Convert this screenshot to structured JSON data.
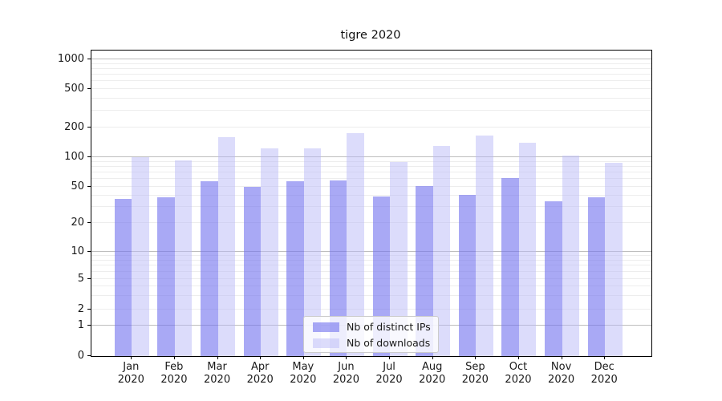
{
  "chart_data": {
    "type": "bar",
    "title": "tigre 2020",
    "months": [
      "Jan",
      "Feb",
      "Mar",
      "Apr",
      "May",
      "Jun",
      "Jul",
      "Aug",
      "Sep",
      "Oct",
      "Nov",
      "Dec"
    ],
    "year": "2020",
    "series": [
      {
        "name": "Nb of distinct IPs",
        "color": "#a9a9f5",
        "fill": "rgba(116,116,239,0.62)",
        "values": [
          37,
          38,
          57,
          50,
          57,
          58,
          39,
          51,
          41,
          62,
          35,
          38
        ]
      },
      {
        "name": "Nb of downloads",
        "color": "#dcdcfb",
        "fill": "rgba(186,186,247,0.50)",
        "values": [
          100,
          93,
          160,
          122,
          122,
          175,
          90,
          130,
          165,
          140,
          104,
          87
        ]
      }
    ],
    "y_axis": {
      "scale": "symlog",
      "ticks": [
        0,
        1,
        2,
        5,
        10,
        20,
        50,
        100,
        200,
        500,
        1000
      ],
      "range": [
        0,
        1000
      ]
    },
    "legend": {
      "position": "lower-center",
      "entries": [
        "Nb of distinct IPs",
        "Nb of downloads"
      ]
    },
    "grid": true
  }
}
